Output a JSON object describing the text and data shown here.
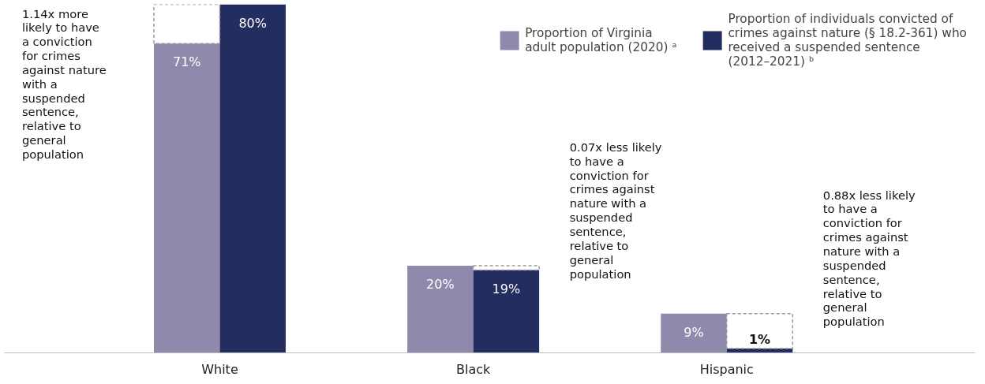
{
  "chart_data": {
    "type": "bar",
    "categories": [
      "White",
      "Black",
      "Hispanic"
    ],
    "series": [
      {
        "name": "Proportion of Virginia adult population (2020) ᵃ",
        "color": "#8f8aab",
        "values": [
          71,
          20,
          9
        ],
        "value_labels": [
          "71%",
          "20%",
          "9%"
        ]
      },
      {
        "name": "Proportion of individuals convicted of crimes against nature (§ 18.2-361) who received a suspended sentence (2012–2021) ᵇ",
        "color": "#232d5f",
        "values": [
          80,
          19,
          1
        ],
        "value_labels": [
          "80%",
          "19%",
          "1%"
        ]
      }
    ],
    "tick_labels": "x",
    "legend": "top right",
    "annotations": [
      "1.14x more likely to have a conviction for crimes against nature with a suspended sentence, relative to general population",
      "0.07x less likely to have a conviction for crimes against nature with a suspended sentence, relative to general population",
      "0.88x less likely to have a conviction for crimes against nature with a suspended sentence, relative to general population"
    ]
  }
}
